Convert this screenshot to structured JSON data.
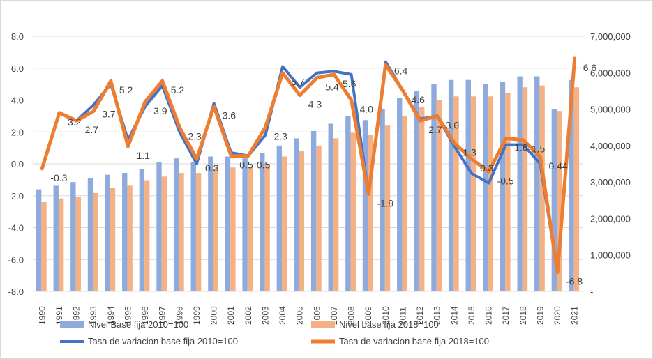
{
  "chart_data": {
    "type": "bar+line",
    "categories": [
      "1990",
      "1991",
      "1992",
      "1993",
      "1994",
      "1995",
      "1996",
      "1997",
      "1998",
      "1999",
      "2000",
      "2001",
      "2002",
      "2003",
      "2004",
      "2005",
      "2006",
      "2007",
      "2008",
      "2009",
      "2010",
      "2011",
      "2012",
      "2013",
      "2014",
      "2015",
      "2016",
      "2017",
      "2018",
      "2019",
      "2020",
      "2021"
    ],
    "left_axis": {
      "ylim": [
        -8,
        8
      ],
      "ticks": [
        "8.0",
        "6.0",
        "4.0",
        "2.0",
        "0.0",
        "-2.0",
        "-4.0",
        "-6.0",
        "-8.0"
      ]
    },
    "right_axis": {
      "ylim": [
        0,
        7000000
      ],
      "ticks": [
        "7,000,000",
        "6,000,000",
        "5,000,000",
        "4,000,000",
        "3,000,000",
        "2,000,000",
        "1,000,000",
        "-"
      ]
    },
    "bars": [
      {
        "name": "Nivel Base fija 2010=100",
        "axis": "right",
        "color": "#8faadc",
        "values": [
          2800000,
          2900000,
          3000000,
          3100000,
          3200000,
          3250000,
          3350000,
          3550000,
          3650000,
          3550000,
          3700000,
          3700000,
          3650000,
          3800000,
          4000000,
          4200000,
          4400000,
          4600000,
          4800000,
          4700000,
          5000000,
          5300000,
          5500000,
          5700000,
          5800000,
          5800000,
          5700000,
          5750000,
          5900000,
          5900000,
          5000000,
          5800000
        ]
      },
      {
        "name": "Nivel base fija 2018=100",
        "axis": "right",
        "color": "#f4b183",
        "values": [
          2450000,
          2550000,
          2600000,
          2700000,
          2850000,
          2900000,
          3050000,
          3150000,
          3250000,
          3250000,
          3350000,
          3400000,
          3400000,
          3500000,
          3700000,
          3850000,
          4000000,
          4200000,
          4350000,
          4300000,
          4550000,
          4800000,
          5050000,
          5250000,
          5350000,
          5350000,
          5350000,
          5450000,
          5600000,
          5650000,
          4950000,
          5600000
        ]
      }
    ],
    "series": [
      {
        "name": "Tasa de variacion base fija 2010=100",
        "axis": "left",
        "color": "#4472c4",
        "width": 4,
        "values": [
          -0.3,
          3.2,
          2.7,
          3.7,
          5.0,
          1.5,
          3.6,
          4.9,
          2.0,
          0.0,
          3.8,
          0.7,
          0.5,
          1.8,
          6.1,
          4.8,
          5.7,
          5.8,
          5.6,
          -1.9,
          6.4,
          4.6,
          2.8,
          3.0,
          1.1,
          -0.6,
          -1.2,
          1.2,
          1.2,
          0.0,
          -6.8,
          6.6
        ]
      },
      {
        "name": "Tasa de variacion base fija 2018=100",
        "axis": "left",
        "color": "#ed7d31",
        "width": 5,
        "values": [
          -0.3,
          3.2,
          2.7,
          3.3,
          5.2,
          1.1,
          3.9,
          5.2,
          2.3,
          0.3,
          3.6,
          0.5,
          0.5,
          2.3,
          5.7,
          4.3,
          5.4,
          5.6,
          4.0,
          -1.9,
          6.2,
          4.6,
          2.7,
          3.0,
          1.3,
          0.3,
          -0.5,
          1.6,
          1.5,
          0.44,
          -6.8,
          6.6
        ]
      }
    ],
    "data_labels": [
      {
        "i": 0,
        "text": "-0.3",
        "y": -0.3
      },
      {
        "i": 1,
        "text": "3.2",
        "y": 3.2
      },
      {
        "i": 2,
        "text": "2.7",
        "y": 2.7
      },
      {
        "i": 3,
        "text": "3.7",
        "y": 3.7
      },
      {
        "i": 4,
        "text": "5.2",
        "y": 5.2
      },
      {
        "i": 5,
        "text": "1.1",
        "y": 1.1
      },
      {
        "i": 6,
        "text": "3.9",
        "y": 3.9
      },
      {
        "i": 7,
        "text": "5.2",
        "y": 5.2
      },
      {
        "i": 8,
        "text": "2.3",
        "y": 2.3
      },
      {
        "i": 9,
        "text": "0.3",
        "y": 0.3
      },
      {
        "i": 10,
        "text": "3.6",
        "y": 3.6
      },
      {
        "i": 11,
        "text": "0.5",
        "y": 0.5
      },
      {
        "i": 12,
        "text": "0.5",
        "y": 0.5
      },
      {
        "i": 13,
        "text": "2.3",
        "y": 2.3
      },
      {
        "i": 14,
        "text": "5.7",
        "y": 5.7
      },
      {
        "i": 15,
        "text": "4.3",
        "y": 4.3
      },
      {
        "i": 16,
        "text": "5.4",
        "y": 5.4
      },
      {
        "i": 17,
        "text": "5.6",
        "y": 5.6
      },
      {
        "i": 18,
        "text": "4.0",
        "y": 4.0
      },
      {
        "i": 19,
        "text": "-1.9",
        "y": -1.9
      },
      {
        "i": 20,
        "text": "6.4",
        "y": 6.4
      },
      {
        "i": 21,
        "text": "4.6",
        "y": 4.6
      },
      {
        "i": 22,
        "text": "2.7",
        "y": 2.7
      },
      {
        "i": 23,
        "text": "3.0",
        "y": 3.0
      },
      {
        "i": 24,
        "text": "1.3",
        "y": 1.3
      },
      {
        "i": 25,
        "text": "0.3",
        "y": 0.3
      },
      {
        "i": 26,
        "text": "-0.5",
        "y": -0.5
      },
      {
        "i": 27,
        "text": "1.6",
        "y": 1.6
      },
      {
        "i": 28,
        "text": "1.5",
        "y": 1.5
      },
      {
        "i": 29,
        "text": "0.44",
        "y": 0.44
      },
      {
        "i": 30,
        "text": "-6.8",
        "y": -6.8
      },
      {
        "i": 31,
        "text": "6.6",
        "y": 6.6
      }
    ],
    "legend_position": "bottom",
    "grid": true
  }
}
